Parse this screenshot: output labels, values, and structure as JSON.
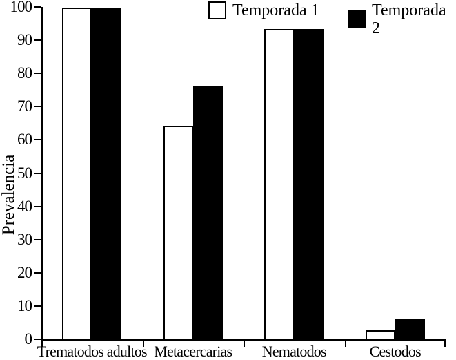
{
  "chart_data": {
    "type": "bar",
    "title": "",
    "xlabel": "",
    "ylabel": "Prevalencia",
    "categories": [
      "Trematodos adultos",
      "Metacercarias",
      "Nematodos",
      "Cestodos"
    ],
    "series": [
      {
        "name": "Temporada 1",
        "color": "#ffffff",
        "values": [
          100,
          64.5,
          93.5,
          3
        ]
      },
      {
        "name": "Temporada 2",
        "color": "#000000",
        "values": [
          100,
          76.5,
          93.5,
          6.5
        ]
      }
    ],
    "ylim": [
      0,
      100
    ],
    "yticks": [
      0,
      10,
      20,
      30,
      40,
      50,
      60,
      70,
      80,
      90,
      100
    ],
    "grid": false,
    "legend_position": "top",
    "bar_edge_color": "#000000",
    "axis_color": "#000000",
    "background_color": "#ffffff"
  }
}
